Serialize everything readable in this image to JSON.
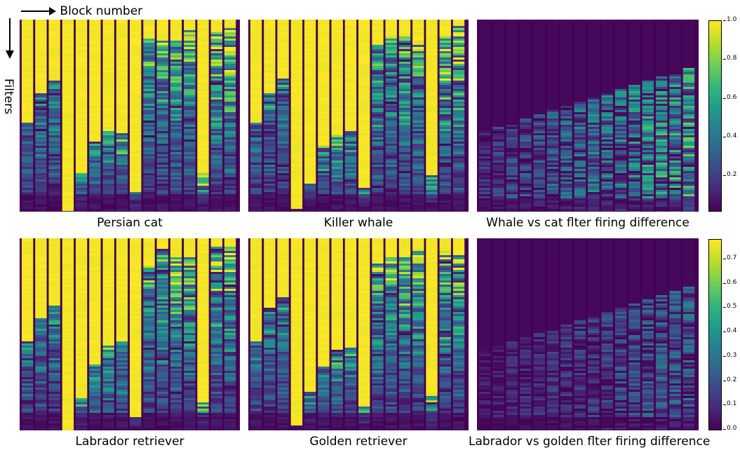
{
  "axis_hints": {
    "x_label": "Block number",
    "y_label": "Filters"
  },
  "colormap": "viridis",
  "colorbars": [
    {
      "ticks": [
        "1.0",
        "0.8",
        "0.6",
        "0.4",
        "0.2"
      ],
      "tick_values": [
        1.0,
        0.8,
        0.6,
        0.4,
        0.2
      ],
      "range": [
        0.02,
        1.0
      ]
    },
    {
      "ticks": [
        "0.7",
        "0.6",
        "0.5",
        "0.4",
        "0.3",
        "0.2",
        "0.1",
        "0.0"
      ],
      "tick_values": [
        0.7,
        0.6,
        0.5,
        0.4,
        0.3,
        0.2,
        0.1,
        0.0
      ],
      "range": [
        0.0,
        0.78
      ]
    }
  ],
  "chart_data": [
    {
      "type": "heatmap",
      "title": "Persian cat",
      "kind": "activation",
      "seed": 11
    },
    {
      "type": "heatmap",
      "title": "Killer whale",
      "kind": "activation",
      "seed": 23
    },
    {
      "type": "heatmap",
      "title": "Whale vs cat flter firing difference",
      "kind": "difference",
      "seed": 37
    },
    {
      "type": "heatmap",
      "title": "Labrador retriever",
      "kind": "activation",
      "seed": 41
    },
    {
      "type": "heatmap",
      "title": "Golden retriever",
      "kind": "activation",
      "seed": 53
    },
    {
      "type": "heatmap",
      "title": "Labrador vs golden flter firing difference",
      "kind": "difference",
      "seed": 67
    }
  ],
  "block_profile": {
    "n_blocks": 16,
    "saturated_fraction": [
      0.55,
      0.38,
      0.33,
      1.0,
      0.82,
      0.64,
      0.58,
      0.56,
      0.9,
      0.12,
      0.08,
      0.08,
      0.08,
      0.82,
      0.05,
      0.05
    ]
  }
}
